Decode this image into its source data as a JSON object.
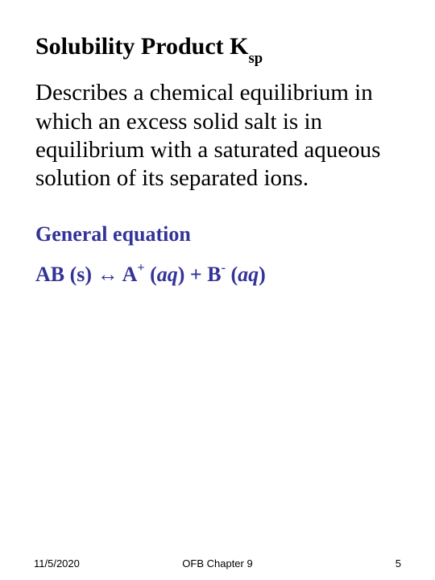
{
  "title": {
    "main": "Solubility Product K",
    "subscript": "sp"
  },
  "body": "Describes a chemical equilibrium in which an excess solid salt is in equilibrium with a saturated aqueous solution of its separated ions.",
  "subheading": "General equation",
  "equation": {
    "lhs": "AB (s) ",
    "arrow": "↔",
    "a": " A",
    "a_sup": "+",
    "a_state_open": " (",
    "aq1": "aq",
    "a_state_close": ") + B",
    "b_sup": "-",
    "b_state_open": " (",
    "aq2": "aq",
    "b_state_close": ")"
  },
  "footer": {
    "date": "11/5/2020",
    "center": "OFB Chapter 9",
    "page": "5"
  },
  "colors": {
    "text_black": "#000000",
    "accent_navy": "#333399",
    "background": "#ffffff"
  }
}
